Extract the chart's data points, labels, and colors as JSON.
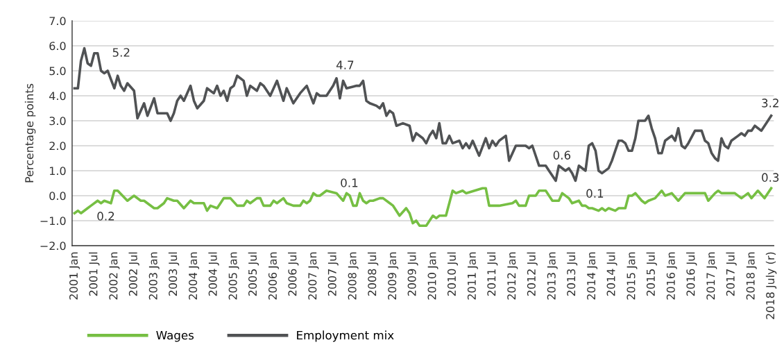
{
  "chart_data": {
    "type": "line",
    "ylabel": "Percentage points",
    "ylim": [
      -2,
      7
    ],
    "yticks": [
      {
        "value": -2,
        "label": "−2.0"
      },
      {
        "value": -1,
        "label": "−1.0"
      },
      {
        "value": 0,
        "label": "0.0"
      },
      {
        "value": 1,
        "label": "1.0"
      },
      {
        "value": 2,
        "label": "2.0"
      },
      {
        "value": 3,
        "label": "3.0"
      },
      {
        "value": 4,
        "label": "4.0"
      },
      {
        "value": 5,
        "label": "5.0"
      },
      {
        "value": 6,
        "label": "6.0"
      },
      {
        "value": 7,
        "label": "7.0"
      }
    ],
    "xlim": [
      "2000-12-10",
      "2018-07-25"
    ],
    "xticks": [
      {
        "value": "2001-01",
        "label": "2001 Jan"
      },
      {
        "value": "2001-07",
        "label": "2001 Jul"
      },
      {
        "value": "2002-01",
        "label": "2002 Jan"
      },
      {
        "value": "2002-07",
        "label": "2002 Jul"
      },
      {
        "value": "2003-01",
        "label": "2003 Jan"
      },
      {
        "value": "2003-07",
        "label": "2003 Jul"
      },
      {
        "value": "2004-01",
        "label": "2004 Jan"
      },
      {
        "value": "2004-07",
        "label": "2004 Jul"
      },
      {
        "value": "2005-01",
        "label": "2005 Jan"
      },
      {
        "value": "2005-07",
        "label": "2005 Jul"
      },
      {
        "value": "2006-01",
        "label": "2006 Jan"
      },
      {
        "value": "2006-07",
        "label": "2006 Jul"
      },
      {
        "value": "2007-01",
        "label": "2007 Jan"
      },
      {
        "value": "2007-07",
        "label": "2007 Jul"
      },
      {
        "value": "2008-01",
        "label": "2008 Jan"
      },
      {
        "value": "2008-07",
        "label": "2008 Jul"
      },
      {
        "value": "2009-01",
        "label": "2009 Jan"
      },
      {
        "value": "2009-07",
        "label": "2009 Jul"
      },
      {
        "value": "2010-01",
        "label": "2010 Jan"
      },
      {
        "value": "2010-07",
        "label": "2010 Jul"
      },
      {
        "value": "2011-01",
        "label": "2011 Jan"
      },
      {
        "value": "2011-07",
        "label": "2011 Jul"
      },
      {
        "value": "2012-01",
        "label": "2012 Jan"
      },
      {
        "value": "2012-07",
        "label": "2012 Jul"
      },
      {
        "value": "2013-01",
        "label": "2013 Jan"
      },
      {
        "value": "2013-07",
        "label": "2013 Jul"
      },
      {
        "value": "2014-01",
        "label": "2014 Jan"
      },
      {
        "value": "2014-07",
        "label": "2014 Jul"
      },
      {
        "value": "2015-01",
        "label": "2015 Jan"
      },
      {
        "value": "2015-07",
        "label": "2015 Jul"
      },
      {
        "value": "2016-01",
        "label": "2016 Jan"
      },
      {
        "value": "2016-07",
        "label": "2016 Jul"
      },
      {
        "value": "2017-01",
        "label": "2017 Jan"
      },
      {
        "value": "2017-07",
        "label": "2017 Jul"
      },
      {
        "value": "2018-01",
        "label": "2018 Jan"
      },
      {
        "value": "2018-07",
        "label": "2018 July (r)"
      }
    ],
    "grid": "y",
    "legend": "bottom",
    "marker": "none",
    "line_style": "solid",
    "series": [
      {
        "name": "Wages",
        "color": "#76bf43",
        "x": [
          "2001-01",
          "2001-02",
          "2001-03",
          "2001-05",
          "2001-06",
          "2001-08",
          "2001-09",
          "2001-10",
          "2001-12",
          "2002-01",
          "2002-02",
          "2002-05",
          "2002-07",
          "2002-09",
          "2002-10",
          "2003-01",
          "2003-02",
          "2003-04",
          "2003-05",
          "2003-07",
          "2003-08",
          "2003-10",
          "2003-12",
          "2004-01",
          "2004-04",
          "2004-05",
          "2004-06",
          "2004-08",
          "2004-09",
          "2004-10",
          "2004-12",
          "2005-02",
          "2005-04",
          "2005-05",
          "2005-06",
          "2005-08",
          "2005-09",
          "2005-10",
          "2005-12",
          "2006-01",
          "2006-02",
          "2006-04",
          "2006-05",
          "2006-07",
          "2006-09",
          "2006-10",
          "2006-11",
          "2006-12",
          "2007-01",
          "2007-02",
          "2007-03",
          "2007-05",
          "2007-08",
          "2007-10",
          "2007-11",
          "2007-12",
          "2008-01",
          "2008-02",
          "2008-03",
          "2008-04",
          "2008-05",
          "2008-06",
          "2008-07",
          "2008-09",
          "2008-10",
          "2008-12",
          "2009-01",
          "2009-03",
          "2009-05",
          "2009-06",
          "2009-07",
          "2009-08",
          "2009-09",
          "2009-11",
          "2010-01",
          "2010-02",
          "2010-03",
          "2010-05",
          "2010-07",
          "2010-08",
          "2010-10",
          "2010-11",
          "2011-04",
          "2011-05",
          "2011-06",
          "2011-08",
          "2011-09",
          "2012-01",
          "2012-02",
          "2012-03",
          "2012-05",
          "2012-06",
          "2012-08",
          "2012-09",
          "2012-11",
          "2013-01",
          "2013-03",
          "2013-04",
          "2013-06",
          "2013-07",
          "2013-09",
          "2013-10",
          "2013-11",
          "2013-12",
          "2014-01",
          "2014-03",
          "2014-04",
          "2014-05",
          "2014-06",
          "2014-08",
          "2014-09",
          "2014-11",
          "2014-12",
          "2015-01",
          "2015-02",
          "2015-04",
          "2015-05",
          "2015-06",
          "2015-08",
          "2015-10",
          "2015-11",
          "2016-01",
          "2016-03",
          "2016-05",
          "2016-11",
          "2016-12",
          "2017-02",
          "2017-03",
          "2017-04",
          "2017-08",
          "2017-10",
          "2017-12",
          "2018-01",
          "2018-03",
          "2018-05",
          "2018-07"
        ],
        "values": [
          -0.7,
          -0.6,
          -0.7,
          -0.5,
          -0.4,
          -0.2,
          -0.3,
          -0.2,
          -0.3,
          0.2,
          0.2,
          -0.2,
          0.0,
          -0.2,
          -0.2,
          -0.5,
          -0.5,
          -0.3,
          -0.1,
          -0.2,
          -0.2,
          -0.5,
          -0.2,
          -0.3,
          -0.3,
          -0.6,
          -0.4,
          -0.5,
          -0.3,
          -0.1,
          -0.1,
          -0.4,
          -0.4,
          -0.2,
          -0.3,
          -0.1,
          -0.1,
          -0.4,
          -0.4,
          -0.2,
          -0.3,
          -0.1,
          -0.3,
          -0.4,
          -0.4,
          -0.2,
          -0.3,
          -0.2,
          0.1,
          0.0,
          0.0,
          0.2,
          0.1,
          -0.2,
          0.1,
          0.0,
          -0.4,
          -0.4,
          0.1,
          -0.2,
          -0.3,
          -0.2,
          -0.2,
          -0.1,
          -0.1,
          -0.3,
          -0.4,
          -0.8,
          -0.5,
          -0.7,
          -1.1,
          -1.0,
          -1.2,
          -1.2,
          -0.8,
          -0.9,
          -0.8,
          -0.8,
          0.2,
          0.1,
          0.2,
          0.1,
          0.3,
          0.3,
          -0.4,
          -0.4,
          -0.4,
          -0.3,
          -0.2,
          -0.4,
          -0.4,
          0.0,
          0.0,
          0.2,
          0.2,
          -0.2,
          -0.2,
          0.1,
          -0.1,
          -0.3,
          -0.2,
          -0.4,
          -0.4,
          -0.5,
          -0.5,
          -0.6,
          -0.5,
          -0.6,
          -0.5,
          -0.6,
          -0.5,
          -0.5,
          0.0,
          0.0,
          0.1,
          -0.2,
          -0.3,
          -0.2,
          -0.1,
          0.2,
          0.0,
          0.1,
          -0.2,
          0.1,
          0.1,
          -0.2,
          0.1,
          0.2,
          0.1,
          0.1,
          -0.1,
          0.1,
          -0.1,
          0.2,
          -0.1,
          0.3
        ]
      },
      {
        "name": "Employment mix",
        "color": "#505254",
        "x": [
          "2001-01",
          "2001-02",
          "2001-03",
          "2001-04",
          "2001-05",
          "2001-06",
          "2001-07",
          "2001-08",
          "2001-09",
          "2001-10",
          "2001-11",
          "2002-01",
          "2002-02",
          "2002-03",
          "2002-04",
          "2002-05",
          "2002-07",
          "2002-08",
          "2002-09",
          "2002-10",
          "2002-11",
          "2003-01",
          "2003-02",
          "2003-05",
          "2003-06",
          "2003-07",
          "2003-08",
          "2003-09",
          "2003-10",
          "2003-12",
          "2004-01",
          "2004-02",
          "2004-04",
          "2004-05",
          "2004-07",
          "2004-08",
          "2004-09",
          "2004-10",
          "2004-11",
          "2004-12",
          "2005-01",
          "2005-02",
          "2005-04",
          "2005-05",
          "2005-06",
          "2005-08",
          "2005-09",
          "2005-10",
          "2005-12",
          "2006-02",
          "2006-04",
          "2006-05",
          "2006-07",
          "2006-09",
          "2006-11",
          "2007-01",
          "2007-02",
          "2007-03",
          "2007-05",
          "2007-07",
          "2007-08",
          "2007-09",
          "2007-10",
          "2007-11",
          "2008-02",
          "2008-03",
          "2008-04",
          "2008-05",
          "2008-06",
          "2008-08",
          "2008-09",
          "2008-10",
          "2008-11",
          "2008-12",
          "2009-01",
          "2009-02",
          "2009-04",
          "2009-06",
          "2009-07",
          "2009-08",
          "2009-10",
          "2009-11",
          "2009-12",
          "2010-01",
          "2010-02",
          "2010-03",
          "2010-04",
          "2010-05",
          "2010-06",
          "2010-07",
          "2010-09",
          "2010-10",
          "2010-11",
          "2010-12",
          "2011-01",
          "2011-03",
          "2011-05",
          "2011-06",
          "2011-07",
          "2011-08",
          "2011-09",
          "2011-11",
          "2011-12",
          "2012-02",
          "2012-05",
          "2012-06",
          "2012-07",
          "2012-09",
          "2012-11",
          "2012-12",
          "2013-02",
          "2013-03",
          "2013-05",
          "2013-06",
          "2013-07",
          "2013-08",
          "2013-09",
          "2013-11",
          "2013-12",
          "2014-01",
          "2014-02",
          "2014-03",
          "2014-04",
          "2014-06",
          "2014-07",
          "2014-08",
          "2014-09",
          "2014-10",
          "2014-11",
          "2014-12",
          "2015-01",
          "2015-02",
          "2015-03",
          "2015-05",
          "2015-06",
          "2015-07",
          "2015-08",
          "2015-09",
          "2015-10",
          "2015-11",
          "2015-12",
          "2016-01",
          "2016-02",
          "2016-03",
          "2016-04",
          "2016-05",
          "2016-06",
          "2016-08",
          "2016-10",
          "2016-11",
          "2016-12",
          "2017-01",
          "2017-02",
          "2017-03",
          "2017-04",
          "2017-05",
          "2017-06",
          "2017-07",
          "2017-09",
          "2017-10",
          "2017-11",
          "2017-12",
          "2018-01",
          "2018-02",
          "2018-04",
          "2018-06",
          "2018-07"
        ],
        "values": [
          4.3,
          4.3,
          5.4,
          5.9,
          5.3,
          5.2,
          5.7,
          5.7,
          5.0,
          4.9,
          5.0,
          4.3,
          4.8,
          4.4,
          4.2,
          4.5,
          4.2,
          3.1,
          3.4,
          3.7,
          3.2,
          3.9,
          3.3,
          3.3,
          3.0,
          3.3,
          3.8,
          4.0,
          3.8,
          4.4,
          3.8,
          3.5,
          3.8,
          4.3,
          4.1,
          4.4,
          4.0,
          4.2,
          3.8,
          4.3,
          4.4,
          4.8,
          4.6,
          4.0,
          4.4,
          4.2,
          4.5,
          4.4,
          4.0,
          4.6,
          3.8,
          4.3,
          3.7,
          4.1,
          4.4,
          3.7,
          4.1,
          4.0,
          4.0,
          4.4,
          4.7,
          3.9,
          4.6,
          4.3,
          4.4,
          4.4,
          4.6,
          3.8,
          3.7,
          3.6,
          3.5,
          3.7,
          3.2,
          3.4,
          3.3,
          2.8,
          2.9,
          2.8,
          2.2,
          2.5,
          2.3,
          2.1,
          2.4,
          2.6,
          2.3,
          2.9,
          2.1,
          2.1,
          2.4,
          2.1,
          2.2,
          1.9,
          2.1,
          1.9,
          2.2,
          1.6,
          2.3,
          1.9,
          2.2,
          2.0,
          2.2,
          2.4,
          1.4,
          2.0,
          2.0,
          1.9,
          2.0,
          1.2,
          1.2,
          1.0,
          0.6,
          1.2,
          1.0,
          1.1,
          0.9,
          0.6,
          1.2,
          1.0,
          2.0,
          2.1,
          1.8,
          1.0,
          0.9,
          1.1,
          1.4,
          1.8,
          2.2,
          2.2,
          2.1,
          1.8,
          1.8,
          2.3,
          3.0,
          3.0,
          3.2,
          2.7,
          2.3,
          1.7,
          1.7,
          2.2,
          2.3,
          2.4,
          2.2,
          2.7,
          2.0,
          1.9,
          2.1,
          2.6,
          2.6,
          2.2,
          2.1,
          1.7,
          1.5,
          1.4,
          2.3,
          2.0,
          1.9,
          2.2,
          2.4,
          2.5,
          2.4,
          2.6,
          2.6,
          2.8,
          2.6,
          3.0,
          3.2
        ]
      }
    ],
    "annotations": [
      "5.2",
      "4.7",
      "0.6",
      "3.2",
      "0.2",
      "0.1",
      "0.1",
      "0.3"
    ]
  }
}
